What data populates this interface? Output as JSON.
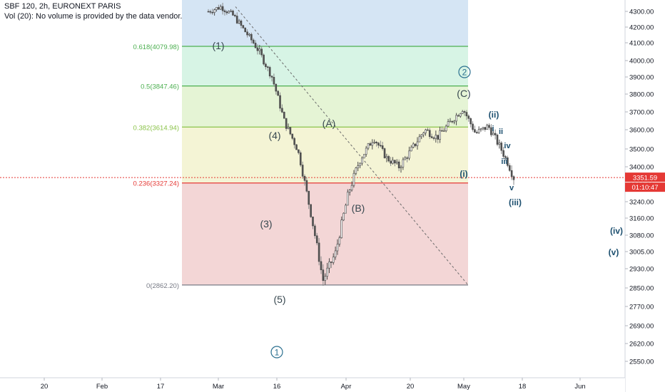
{
  "header": {
    "symbol_line": "SBF 120, 2h, EURONEXT PARIS",
    "volume_note": "Vol (20): No volume is provided by the data vendor."
  },
  "chart_data": {
    "type": "candlestick",
    "title": "SBF 120, 2h, EURONEXT PARIS",
    "y_axis": {
      "ticks": [
        "4300.00",
        "4200.00",
        "4100.00",
        "4000.00",
        "3900.00",
        "3800.00",
        "3700.00",
        "3600.00",
        "3500.00",
        "3400.00",
        "3320.00",
        "3240.00",
        "3160.00",
        "3080.00",
        "3005.00",
        "2930.00",
        "2850.00",
        "2770.00",
        "2690.00",
        "2620.00",
        "2550.00"
      ]
    },
    "x_axis": {
      "ticks": [
        "20",
        "Feb",
        "17",
        "Mar",
        "16",
        "Apr",
        "20",
        "May",
        "18",
        "Jun"
      ]
    },
    "current_price": {
      "value": "3351.59",
      "countdown": "01:10:47",
      "color": "#e53935"
    },
    "fibonacci": [
      {
        "label": "0.618(4079.98)",
        "level": 4079.98,
        "color": "#4caf50"
      },
      {
        "label": "0.5(3847.46)",
        "level": 3847.46,
        "color": "#4caf50"
      },
      {
        "label": "0.382(3614.94)",
        "level": 3614.94,
        "color": "#8bc34a"
      },
      {
        "label": "0.236(3327.24)",
        "level": 3327.24,
        "color": "#e53935"
      },
      {
        "label": "0(2862.20)",
        "level": 2862.2,
        "color": "#787b86"
      }
    ],
    "zone_colors": [
      "#d3e4f3",
      "#d5f3e4",
      "#e4f3d3",
      "#f3f3d3",
      "#f2d4d4"
    ],
    "elliott_labels": [
      {
        "text": "(1)",
        "color": "#37474f"
      },
      {
        "text": "(4)",
        "color": "#37474f"
      },
      {
        "text": "(3)",
        "color": "#37474f"
      },
      {
        "text": "(5)",
        "color": "#37474f"
      },
      {
        "text": "(A)",
        "color": "#37474f"
      },
      {
        "text": "(B)",
        "color": "#37474f"
      },
      {
        "text": "(C)",
        "color": "#37474f"
      },
      {
        "text": "2",
        "color": "#2a6f8f",
        "circled": true
      },
      {
        "text": "1",
        "color": "#2a6f8f",
        "circled": true
      },
      {
        "text": "(ii)",
        "color": "#1c4f6f"
      },
      {
        "text": "(i)",
        "color": "#1c4f6f"
      },
      {
        "text": "(iii)",
        "color": "#1c4f6f"
      },
      {
        "text": "(iv)",
        "color": "#1c4f6f"
      },
      {
        "text": "(v)",
        "color": "#1c4f6f"
      },
      {
        "text": "i",
        "color": "#1c4f6f"
      },
      {
        "text": "ii",
        "color": "#1c4f6f"
      },
      {
        "text": "iii",
        "color": "#1c4f6f"
      },
      {
        "text": "iv",
        "color": "#1c4f6f"
      },
      {
        "text": "v",
        "color": "#1c4f6f"
      }
    ],
    "price_path_approx": [
      4300,
      4330,
      4270,
      4160,
      4050,
      3900,
      3640,
      3500,
      3200,
      2880,
      3000,
      3280,
      3450,
      3560,
      3450,
      3400,
      3500,
      3600,
      3560,
      3640,
      3720,
      3580,
      3620,
      3500,
      3352
    ],
    "grid": false
  }
}
